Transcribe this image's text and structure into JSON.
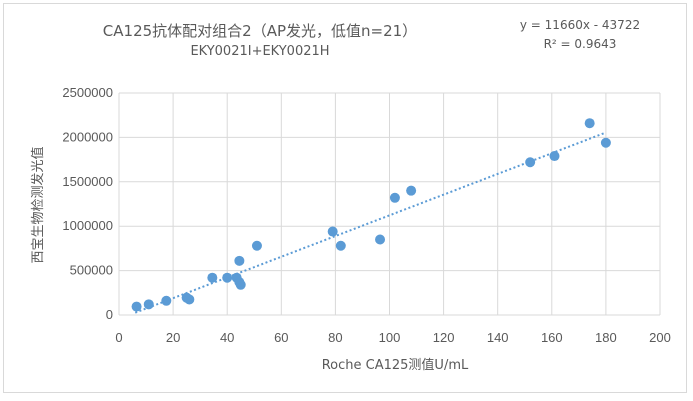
{
  "chart_data": {
    "type": "scatter",
    "title": "CA125抗体配对组合2（AP发光，低值n=21）",
    "subtitle": "EKY0021I+EKY0021H",
    "xlabel": "Roche CA125测值U/mL",
    "ylabel": "西宝生物检测发光值",
    "xlim": [
      0,
      200
    ],
    "ylim": [
      0,
      2500000
    ],
    "x_ticks": [
      "0",
      "20",
      "40",
      "60",
      "80",
      "100",
      "120",
      "140",
      "160",
      "180",
      "200"
    ],
    "y_ticks": [
      "0",
      "500000",
      "1000000",
      "1500000",
      "2000000",
      "2500000"
    ],
    "grid": true,
    "trendline": {
      "type": "linear",
      "slope": 11660,
      "intercept": -43722,
      "equation": "y = 11660x - 43722",
      "r2": "R² = 0.9643",
      "x_range": [
        6,
        180
      ]
    },
    "points": [
      {
        "x": 6.5,
        "y": 95000
      },
      {
        "x": 11,
        "y": 120000
      },
      {
        "x": 17.5,
        "y": 160000
      },
      {
        "x": 25,
        "y": 195000
      },
      {
        "x": 26,
        "y": 175000
      },
      {
        "x": 34.5,
        "y": 420000
      },
      {
        "x": 40,
        "y": 420000
      },
      {
        "x": 43.5,
        "y": 420000
      },
      {
        "x": 44.5,
        "y": 370000
      },
      {
        "x": 45,
        "y": 340000
      },
      {
        "x": 44.5,
        "y": 610000
      },
      {
        "x": 51,
        "y": 780000
      },
      {
        "x": 79,
        "y": 940000
      },
      {
        "x": 82,
        "y": 780000
      },
      {
        "x": 96.5,
        "y": 850000
      },
      {
        "x": 102,
        "y": 1320000
      },
      {
        "x": 108,
        "y": 1400000
      },
      {
        "x": 152,
        "y": 1720000
      },
      {
        "x": 161,
        "y": 1790000
      },
      {
        "x": 174,
        "y": 2160000
      },
      {
        "x": 180,
        "y": 1940000
      }
    ],
    "colors": {
      "points": "#5b9bd5",
      "trendline": "#5b9bd5",
      "grid": "#d9d9d9"
    }
  }
}
